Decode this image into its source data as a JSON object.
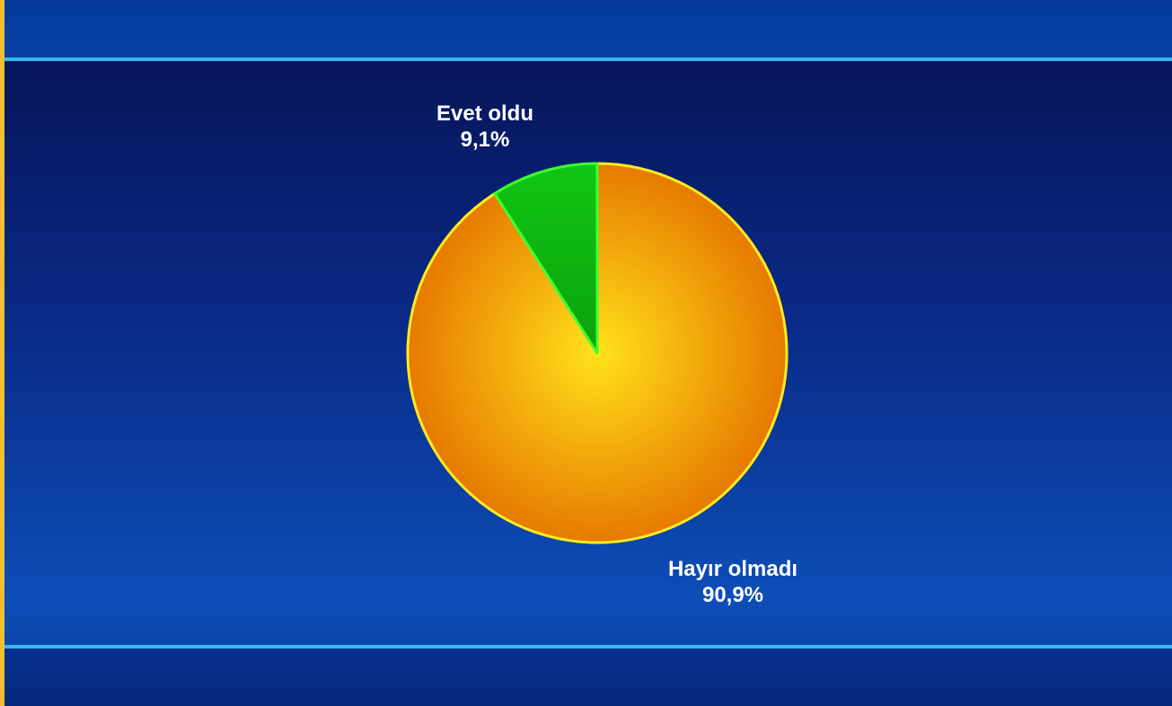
{
  "colors": {
    "slice_evet": "#0fbf12",
    "slice_evet_stroke": "#3dff2f",
    "slice_hayir_center": "#ffe21a",
    "slice_hayir_edge": "#e67a00",
    "pie_stroke": "#ffea1e",
    "band_rule": "#33b8f0"
  },
  "chart_data": {
    "type": "pie",
    "title": "",
    "slices": [
      {
        "label": "Evet oldu",
        "value": 9.1,
        "value_label": "9,1%",
        "color": "#0fbf12"
      },
      {
        "label": "Hayır olmadı",
        "value": 90.9,
        "value_label": "90,9%",
        "color": "#f0a010"
      }
    ]
  }
}
